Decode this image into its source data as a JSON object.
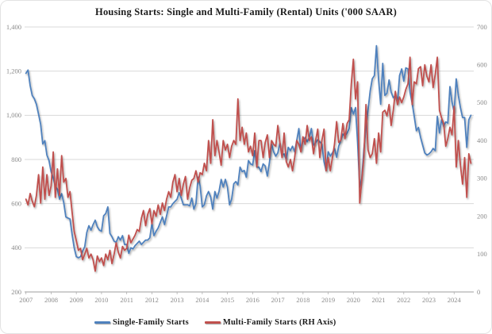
{
  "title": "Housing Starts: Single and Multi-Family (Rental) Units ('000 SAAR)",
  "legend": [
    {
      "id": "single-family",
      "label": "Single-Family Starts",
      "color": "#4f81bd"
    },
    {
      "id": "multi-family",
      "label": "Multi-Family Starts (RH Axis)",
      "color": "#c0504d"
    }
  ],
  "colors": {
    "grid": "#dadada",
    "axis": "#b0b0b0",
    "tick_text": "#8a8a8a",
    "title_text": "#1c1c1c",
    "background": "#ffffff"
  },
  "chart_data": {
    "type": "line",
    "title": "Housing Starts: Single and Multi-Family (Rental) Units ('000 SAAR)",
    "frequency": "monthly",
    "x_start": "2007-01",
    "x_end": "2024-09",
    "x_tick_labels": [
      "2007",
      "2008",
      "2009",
      "2010",
      "2011",
      "2012",
      "2013",
      "2014",
      "2015",
      "2016",
      "2017",
      "2018",
      "2019",
      "2020",
      "2021",
      "2022",
      "2023",
      "2024"
    ],
    "grid": "horizontal-only",
    "legend_position": "bottom",
    "left_axis": {
      "min": 200,
      "max": 1400,
      "ticks": [
        1400,
        1200,
        1000,
        800,
        600,
        400,
        200
      ]
    },
    "right_axis": {
      "min": 0,
      "max": 700,
      "ticks": [
        700,
        600,
        500,
        400,
        300,
        200,
        100,
        0
      ]
    },
    "series": [
      {
        "id": "single-family-starts",
        "name": "Single-Family Starts",
        "axis": "left",
        "color": "#4f81bd",
        "values": [
          1190,
          1205,
          1135,
          1090,
          1075,
          1050,
          1005,
          960,
          870,
          885,
          820,
          795,
          745,
          715,
          680,
          665,
          620,
          645,
          605,
          540,
          535,
          530,
          460,
          400,
          360,
          355,
          360,
          385,
          405,
          470,
          500,
          480,
          505,
          525,
          495,
          480,
          475,
          545,
          555,
          585,
          465,
          450,
          430,
          425,
          450,
          435,
          455,
          415,
          415,
          375,
          400,
          395,
          410,
          420,
          430,
          415,
          425,
          435,
          435,
          445,
          510,
          455,
          475,
          490,
          515,
          540,
          505,
          545,
          585,
          585,
          600,
          610,
          620,
          650,
          625,
          595,
          595,
          595,
          590,
          625,
          575,
          600,
          720,
          680,
          585,
          595,
          635,
          655,
          630,
          575,
          655,
          625,
          655,
          710,
          675,
          710,
          675,
          595,
          620,
          690,
          700,
          685,
          765,
          745,
          750,
          720,
          795,
          780,
          775,
          840,
          765,
          765,
          745,
          780,
          770,
          725,
          785,
          870,
          835,
          815,
          830,
          875,
          820,
          825,
          800,
          855,
          840,
          860,
          835,
          885,
          940,
          840,
          885,
          900,
          880,
          900,
          940,
          865,
          875,
          890,
          880,
          870,
          790,
          750,
          835,
          815,
          830,
          850,
          810,
          860,
          885,
          915,
          905,
          920,
          940,
          1035,
          1005,
          1035,
          880,
          675,
          715,
          845,
          945,
          1025,
          1110,
          1165,
          1180,
          1315,
          1160,
          1050,
          1235,
          1090,
          1100,
          1160,
          1105,
          1080,
          1090,
          1055,
          1180,
          1210,
          1155,
          1215,
          1210,
          1105,
          1055,
          995,
          930,
          945,
          900,
          865,
          830,
          820,
          825,
          835,
          850,
          840,
          995,
          920,
          980,
          950,
          970,
          965,
          1130,
          1060,
          1015,
          1165,
          1090,
          1035,
          990,
          990,
          855,
          980,
          1000
        ]
      },
      {
        "id": "multi-family-starts",
        "name": "Multi-Family Starts (RH Axis)",
        "axis": "right",
        "color": "#c0504d",
        "values": [
          245,
          230,
          260,
          240,
          225,
          255,
          310,
          235,
          330,
          245,
          310,
          255,
          280,
          370,
          250,
          325,
          255,
          360,
          290,
          300,
          250,
          265,
          210,
          160,
          135,
          110,
          115,
          85,
          100,
          115,
          90,
          100,
          85,
          55,
          95,
          80,
          90,
          70,
          100,
          85,
          110,
          75,
          100,
          130,
          105,
          90,
          120,
          110,
          115,
          150,
          130,
          140,
          150,
          165,
          160,
          195,
          215,
          175,
          205,
          220,
          180,
          215,
          200,
          230,
          205,
          235,
          215,
          245,
          265,
          250,
          290,
          310,
          265,
          300,
          255,
          285,
          305,
          245,
          275,
          295,
          300,
          320,
          290,
          315,
          310,
          340,
          320,
          400,
          340,
          455,
          360,
          400,
          370,
          335,
          400,
          375,
          390,
          355,
          385,
          400,
          390,
          510,
          400,
          435,
          390,
          420,
          370,
          385,
          360,
          420,
          330,
          400,
          400,
          355,
          395,
          415,
          355,
          400,
          390,
          385,
          440,
          395,
          355,
          420,
          345,
          330,
          350,
          320,
          355,
          400,
          390,
          370,
          410,
          390,
          440,
          400,
          410,
          365,
          400,
          430,
          355,
          400,
          430,
          320,
          355,
          320,
          355,
          390,
          450,
          395,
          400,
          445,
          405,
          445,
          455,
          550,
          615,
          510,
          555,
          235,
          295,
          355,
          495,
          375,
          355,
          365,
          405,
          340,
          420,
          370,
          475,
          480,
          465,
          495,
          440,
          480,
          530,
          495,
          515,
          500,
          515,
          535,
          550,
          620,
          495,
          555,
          550,
          590,
          595,
          545,
          600,
          570,
          555,
          600,
          540,
          575,
          620,
          480,
          460,
          445,
          385,
          405,
          435,
          415,
          490,
          330,
          400,
          335,
          285,
          355,
          250,
          365,
          340
        ]
      }
    ]
  }
}
